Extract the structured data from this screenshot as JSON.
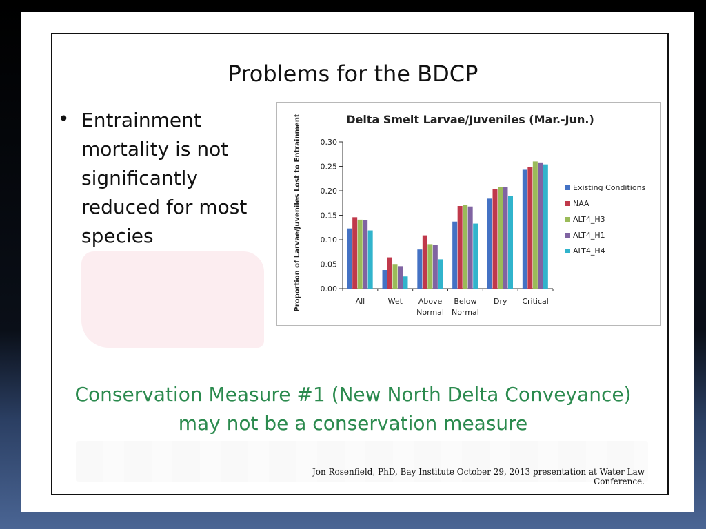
{
  "slide": {
    "title": "Problems for the BDCP",
    "bullet": "Entrainment mortality is not significantly reduced for most species",
    "conservation_measure": {
      "line1": "Conservation Measure #1 (New North Delta Conveyance)",
      "line2": "may not be a conservation measure"
    },
    "credit": "Jon Rosenfield, PhD, Bay Institute October 29, 2013 presentation at Water Law Conference."
  },
  "chart_data": {
    "type": "bar",
    "title": "Delta Smelt Larvae/Juveniles (Mar.-Jun.)",
    "ylabel": "Proportion of Larvae/Juveniles Lost to Entrainment",
    "xlabel": "",
    "ylim": [
      0,
      0.3
    ],
    "yticks": [
      "0.00",
      "0.05",
      "0.10",
      "0.15",
      "0.20",
      "0.25",
      "0.30"
    ],
    "ytick_values": [
      0,
      0.05,
      0.1,
      0.15,
      0.2,
      0.25,
      0.3
    ],
    "categories": [
      [
        "All"
      ],
      [
        "Wet"
      ],
      [
        "Above",
        "Normal"
      ],
      [
        "Below",
        "Normal"
      ],
      [
        "Dry"
      ],
      [
        "Critical"
      ]
    ],
    "legend_position": "right",
    "grid": false,
    "series": [
      {
        "name": "Existing Conditions",
        "color": "#4472c4",
        "values": [
          0.123,
          0.038,
          0.08,
          0.137,
          0.184,
          0.243
        ]
      },
      {
        "name": "NAA",
        "color": "#c0394b",
        "values": [
          0.146,
          0.064,
          0.109,
          0.169,
          0.204,
          0.249
        ]
      },
      {
        "name": "ALT4_H3",
        "color": "#9bbb59",
        "values": [
          0.141,
          0.049,
          0.091,
          0.171,
          0.208,
          0.26
        ]
      },
      {
        "name": "ALT4_H1",
        "color": "#8064a2",
        "values": [
          0.14,
          0.046,
          0.089,
          0.168,
          0.208,
          0.258
        ]
      },
      {
        "name": "ALT4_H4",
        "color": "#31b4cc",
        "values": [
          0.119,
          0.025,
          0.06,
          0.133,
          0.19,
          0.254
        ]
      }
    ]
  }
}
